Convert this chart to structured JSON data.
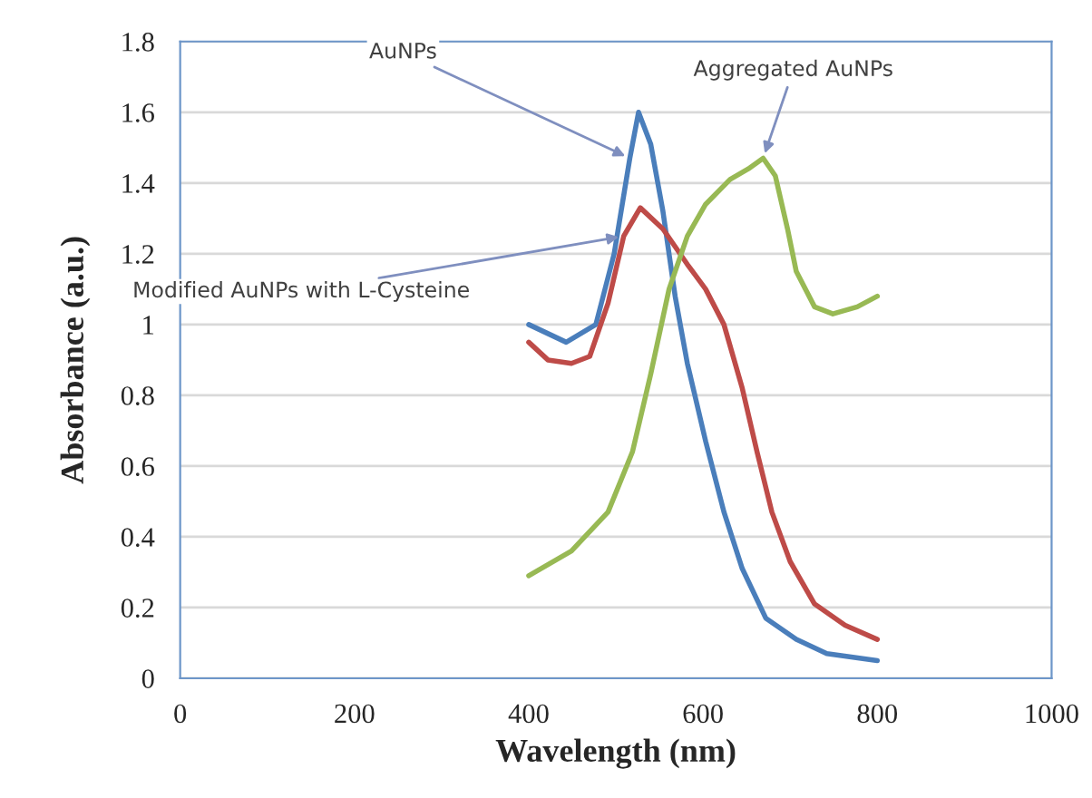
{
  "chart_data": {
    "type": "line",
    "xlabel": "Wavelength (nm)",
    "ylabel": "Absorbance (a.u.)",
    "xlim": [
      0,
      1000
    ],
    "xticks": [
      0,
      200,
      400,
      600,
      800,
      1000
    ],
    "ylim": [
      0,
      1.8
    ],
    "yticks": [
      {
        "value": 0,
        "label": "0"
      },
      0.2,
      0.4,
      0.6,
      0.8,
      {
        "value": 1,
        "label": "1"
      },
      1.2,
      1.4,
      1.6,
      1.8
    ],
    "grid": "y",
    "legend": false,
    "marker": "none",
    "line_style": "solid",
    "series": [
      {
        "color": "#4a7ebb",
        "x": [
          400,
          443,
          477,
          498,
          516,
          526,
          540,
          554,
          568,
          582,
          603,
          624,
          645,
          672,
          707,
          742,
          800
        ],
        "values": [
          1.0,
          0.95,
          1.0,
          1.2,
          1.47,
          1.6,
          1.51,
          1.32,
          1.08,
          0.89,
          0.67,
          0.47,
          0.31,
          0.17,
          0.11,
          0.07,
          0.05
        ]
      },
      {
        "color": "#be4b48",
        "x": [
          400,
          422,
          449,
          470,
          491,
          509,
          528,
          554,
          582,
          603,
          624,
          645,
          662,
          679,
          700,
          728,
          763,
          800
        ],
        "values": [
          0.95,
          0.9,
          0.89,
          0.91,
          1.06,
          1.25,
          1.33,
          1.27,
          1.17,
          1.1,
          1.0,
          0.82,
          0.64,
          0.47,
          0.33,
          0.21,
          0.15,
          0.11
        ]
      },
      {
        "color": "#98b954",
        "x": [
          400,
          449,
          491,
          519,
          540,
          561,
          582,
          603,
          631,
          652,
          669,
          683,
          697,
          707,
          728,
          749,
          777,
          800
        ],
        "values": [
          0.29,
          0.36,
          0.47,
          0.64,
          0.86,
          1.1,
          1.25,
          1.34,
          1.41,
          1.44,
          1.47,
          1.42,
          1.27,
          1.15,
          1.05,
          1.03,
          1.05,
          1.08
        ]
      }
    ],
    "annotations": [
      {
        "text": "AuNPs",
        "x": 516,
        "y": 1.47
      },
      {
        "text": "Modified AuNPs with L-Cysteine",
        "x": 509,
        "y": 1.25
      },
      {
        "text": "Aggregated AuNPs",
        "x": 669,
        "y": 1.47
      }
    ]
  }
}
